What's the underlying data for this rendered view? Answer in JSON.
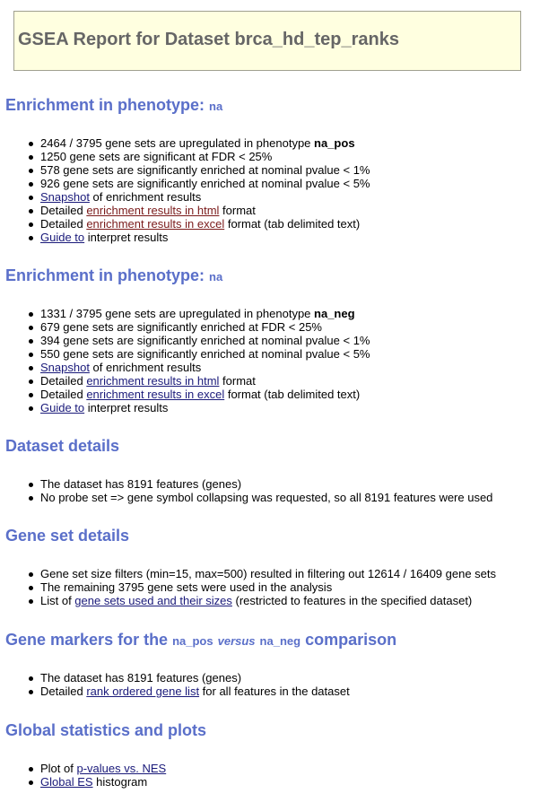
{
  "report_title": "GSEA Report for Dataset brca_hd_tep_ranks",
  "pheno_pos": {
    "heading": "Enrichment in phenotype:",
    "heading_tag": "na",
    "upregulated_prefix": "2464 / 3795 gene sets are upregulated in phenotype",
    "upregulated_pheno": "na_pos",
    "fdr_line": "1250 gene sets are significant at FDR < 25%",
    "p1_line": "578 gene sets are significantly enriched at nominal pvalue < 1%",
    "p5_line": "926 gene sets are significantly enriched at nominal pvalue < 5%",
    "snapshot_link": "Snapshot",
    "snapshot_suffix": " of enrichment results",
    "html_prefix": "Detailed ",
    "html_link": "enrichment results in html",
    "html_suffix": " format",
    "excel_prefix": "Detailed ",
    "excel_link": "enrichment results in excel",
    "excel_suffix": " format (tab delimited text)",
    "guide_link": "Guide to",
    "guide_suffix": " interpret results"
  },
  "pheno_neg": {
    "heading": "Enrichment in phenotype:",
    "heading_tag": "na",
    "upregulated_prefix": "1331 / 3795 gene sets are upregulated in phenotype",
    "upregulated_pheno": "na_neg",
    "fdr_line": "679 gene sets are significantly enriched at FDR < 25%",
    "p1_line": "394 gene sets are significantly enriched at nominal pvalue < 1%",
    "p5_line": "550 gene sets are significantly enriched at nominal pvalue < 5%",
    "snapshot_link": "Snapshot",
    "snapshot_suffix": " of enrichment results",
    "html_prefix": "Detailed ",
    "html_link": "enrichment results in html",
    "html_suffix": " format",
    "excel_prefix": "Detailed ",
    "excel_link": "enrichment results in excel",
    "excel_suffix": " format (tab delimited text)",
    "guide_link": "Guide to",
    "guide_suffix": " interpret results"
  },
  "dataset_details": {
    "heading": "Dataset details",
    "features_line": "The dataset has 8191 features (genes)",
    "collapse_line": "No probe set => gene symbol collapsing was requested, so all 8191 features were used"
  },
  "gene_set_details": {
    "heading": "Gene set details",
    "filter_line": "Gene set size filters (min=15, max=500) resulted in filtering out 12614 / 16409 gene sets",
    "remaining_line": "The remaining 3795 gene sets were used in the analysis",
    "list_prefix": "List of ",
    "list_link": "gene sets used and their sizes",
    "list_suffix": " (restricted to features in the specified dataset)"
  },
  "gene_markers": {
    "heading_a": "Gene markers for the ",
    "pos_tag": "na_pos",
    "versus": "versus",
    "neg_tag": "na_neg",
    "heading_b": " comparison",
    "features_line": "The dataset has 8191 features (genes)",
    "detailed_prefix": "Detailed ",
    "rank_link": "rank ordered gene list",
    "rank_suffix": " for all features in the dataset"
  },
  "global_stats": {
    "heading": "Global statistics and plots",
    "plot_prefix": "Plot of ",
    "pvalues_link": "p-values vs. NES",
    "global_es_link": "Global ES",
    "histogram_suffix": " histogram"
  }
}
